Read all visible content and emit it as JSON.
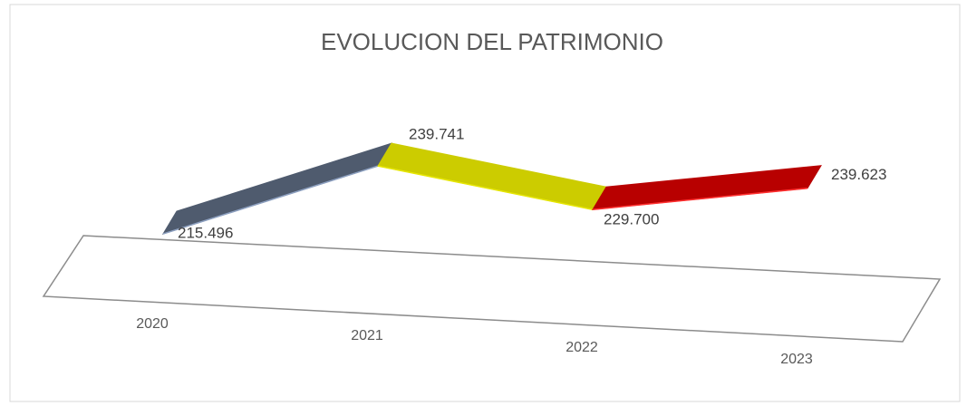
{
  "chart_data": {
    "type": "line3d",
    "title": "EVOLUCION DEL PATRIMONIO",
    "categories": [
      "2020",
      "2021",
      "2022",
      "2023"
    ],
    "values": [
      215496,
      239741,
      229700,
      239623
    ],
    "value_labels": [
      "215.496",
      "239.741",
      "229.700",
      "239.623"
    ],
    "segment_colors": [
      "#4f5b6e",
      "#cccc00",
      "#b80000"
    ]
  }
}
